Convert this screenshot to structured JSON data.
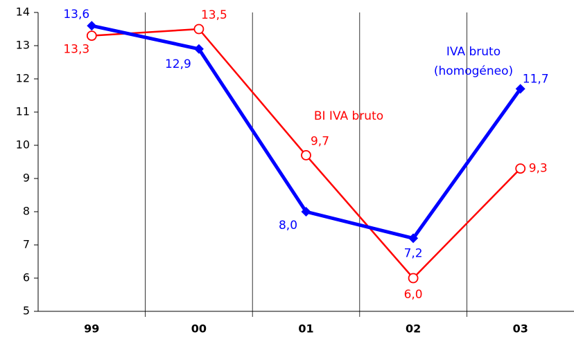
{
  "chart_data": {
    "type": "line",
    "categories": [
      "99",
      "00",
      "01",
      "02",
      "03"
    ],
    "series": [
      {
        "name": "BI IVA bruto",
        "color": "#ff0000",
        "marker": "circle",
        "values": [
          13.3,
          13.5,
          9.7,
          6.0,
          9.3
        ],
        "value_labels": [
          "13,3",
          "13,5",
          "9,7",
          "6,0",
          "9,3"
        ]
      },
      {
        "name": "IVA bruto (homogéneo)",
        "color": "#0000ff",
        "marker": "diamond",
        "values": [
          13.6,
          12.9,
          8.0,
          7.2,
          11.7
        ],
        "value_labels": [
          "13,6",
          "12,9",
          "8,0",
          "7,2",
          "11,7"
        ]
      }
    ],
    "ylim": [
      5,
      14
    ],
    "yticks": [
      5,
      6,
      7,
      8,
      9,
      10,
      11,
      12,
      13,
      14
    ],
    "grid": false
  }
}
